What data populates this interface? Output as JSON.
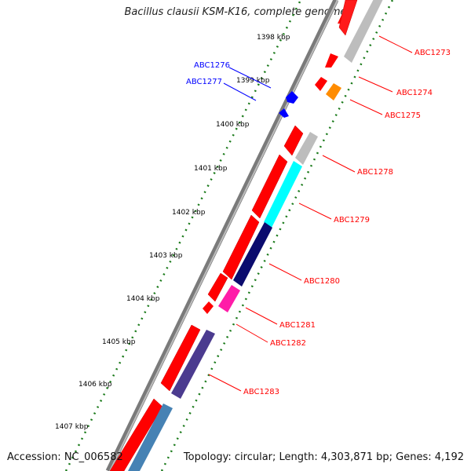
{
  "title": "Bacillus clausii KSM-K16, complete genome",
  "footer": {
    "accession": "Accession: NC_006582",
    "summary": "Topology: circular; Length: 4,303,871 bp; Genes: 4,192"
  },
  "ticks": [
    "1398 kbp",
    "1399 kbp",
    "1400 kbp",
    "1401 kbp",
    "1402 kbp",
    "1403 kbp",
    "1404 kbp",
    "1405 kbp",
    "1406 kbp",
    "1407 kbp"
  ],
  "gene_labels_red": [
    "ABC1273",
    "ABC1274",
    "ABC1275",
    "ABC1278",
    "ABC1279",
    "ABC1280",
    "ABC1281",
    "ABC1282",
    "ABC1283"
  ],
  "gene_labels_blue": [
    "ABC1276",
    "ABC1277"
  ],
  "colors": {
    "red": "#ff0000",
    "blue": "#0000ff",
    "grey": "#bdbdbd",
    "cyan": "#00ffff",
    "navy": "#0b0b6e",
    "pink": "#ff1ca8",
    "purple": "#4b3b8f",
    "steel": "#4682b4",
    "orange": "#ff8c00",
    "green": "#1a7a1a",
    "backbone": "#808080"
  }
}
